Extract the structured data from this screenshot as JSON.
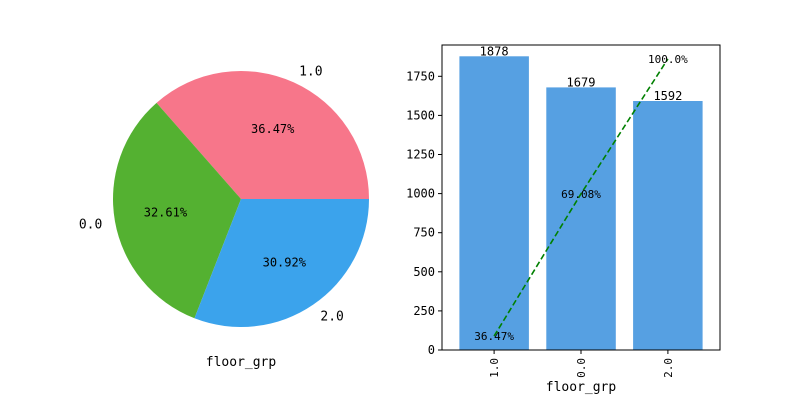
{
  "chart_data": [
    {
      "type": "pie",
      "xlabel": "floor_grp",
      "categories": [
        "1.0",
        "0.0",
        "2.0"
      ],
      "values": [
        36.47,
        32.61,
        30.92
      ],
      "value_labels": [
        "36.47%",
        "32.61%",
        "30.92%"
      ],
      "colors": [
        "#f7768a",
        "#54b131",
        "#3ba3ec"
      ]
    },
    {
      "type": "bar",
      "xlabel": "floor_grp",
      "categories": [
        "1.0",
        "0.0",
        "2.0"
      ],
      "values": [
        1878,
        1679,
        1592
      ],
      "ylim": [
        0,
        1950
      ],
      "yticks": [
        0,
        250,
        500,
        750,
        1000,
        1250,
        1500,
        1750
      ],
      "bar_color": "#56a0e2",
      "cumulative": {
        "values": [
          36.47,
          69.08,
          100.0
        ],
        "labels": [
          "36.47%",
          "69.08%",
          "100.0%"
        ],
        "color": "#008000",
        "style": "dashed"
      }
    }
  ]
}
